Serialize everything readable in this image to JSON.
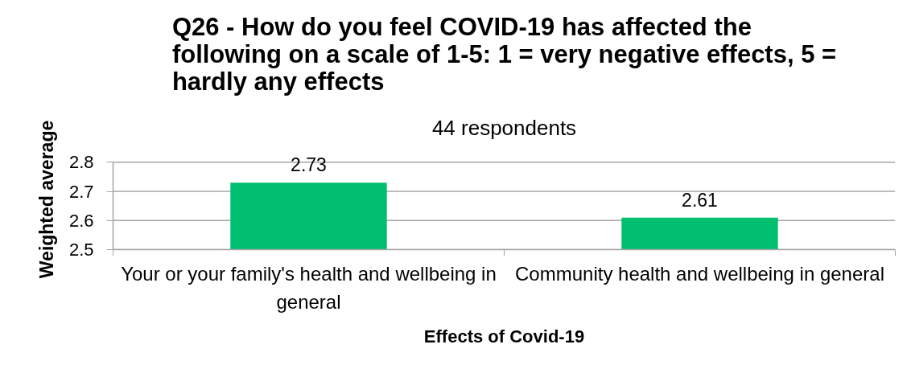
{
  "chart_data": {
    "type": "bar",
    "title": "Q26 - How do you feel COVID-19 has affected the\nfollowing on a scale of 1-5: 1 = very negative effects, 5 =\nhardly any effects",
    "subtitle": "44 respondents",
    "xlabel": "Effects of Covid-19",
    "ylabel": "Weighted average",
    "categories": [
      "Your or your family's health and wellbeing in general",
      "Community health and wellbeing in general"
    ],
    "values": [
      2.73,
      2.61
    ],
    "color": "#00bf6f",
    "ylim": [
      2.5,
      2.8
    ],
    "yticks": [
      2.5,
      2.6,
      2.7,
      2.8
    ],
    "grid": "y",
    "data_labels": true
  }
}
